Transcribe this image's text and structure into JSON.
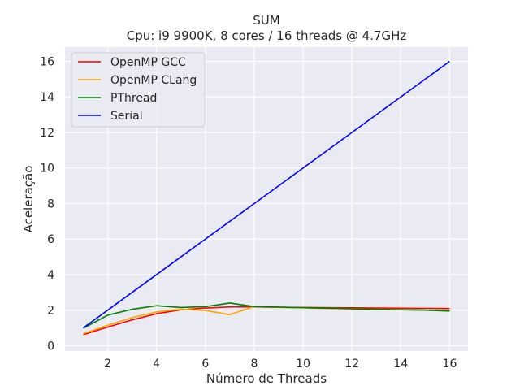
{
  "chart_data": {
    "type": "line",
    "title": "SUM",
    "subtitle": "Cpu: i9 9900K, 8 cores / 16 threads @ 4.7GHz",
    "xlabel": "Número de Threads",
    "ylabel": "Aceleração",
    "xlim": [
      0.25,
      16.75
    ],
    "ylim": [
      -0.3,
      16.8
    ],
    "xticks": [
      2,
      4,
      6,
      8,
      10,
      12,
      14,
      16
    ],
    "yticks": [
      0,
      2,
      4,
      6,
      8,
      10,
      12,
      14,
      16
    ],
    "grid": true,
    "legend_position": "top-left",
    "background": "#eaeaf2",
    "x": [
      1,
      2,
      3,
      4,
      5,
      6,
      7,
      8,
      9,
      10,
      11,
      12,
      13,
      14,
      15,
      16
    ],
    "series": [
      {
        "name": "OpenMP GCC",
        "color": "#ff0000",
        "values": [
          0.62,
          1.05,
          1.45,
          1.8,
          2.02,
          2.12,
          2.18,
          2.18,
          2.16,
          2.15,
          2.14,
          2.13,
          2.12,
          2.11,
          2.1,
          2.09
        ]
      },
      {
        "name": "OpenMP CLang",
        "color": "#ffa500",
        "values": [
          0.68,
          1.15,
          1.58,
          1.9,
          2.05,
          1.98,
          1.75,
          2.2,
          2.16,
          2.13,
          2.1,
          2.08,
          2.05,
          2.02,
          2.0,
          1.98
        ]
      },
      {
        "name": "PThread",
        "color": "#008000",
        "values": [
          0.98,
          1.72,
          2.05,
          2.25,
          2.15,
          2.2,
          2.4,
          2.2,
          2.17,
          2.14,
          2.11,
          2.08,
          2.05,
          2.02,
          2.0,
          1.95
        ]
      },
      {
        "name": "Serial",
        "color": "#0000ff",
        "values": [
          1,
          2,
          3,
          4,
          5,
          6,
          7,
          8,
          9,
          10,
          11,
          12,
          13,
          14,
          15,
          16
        ]
      }
    ]
  }
}
